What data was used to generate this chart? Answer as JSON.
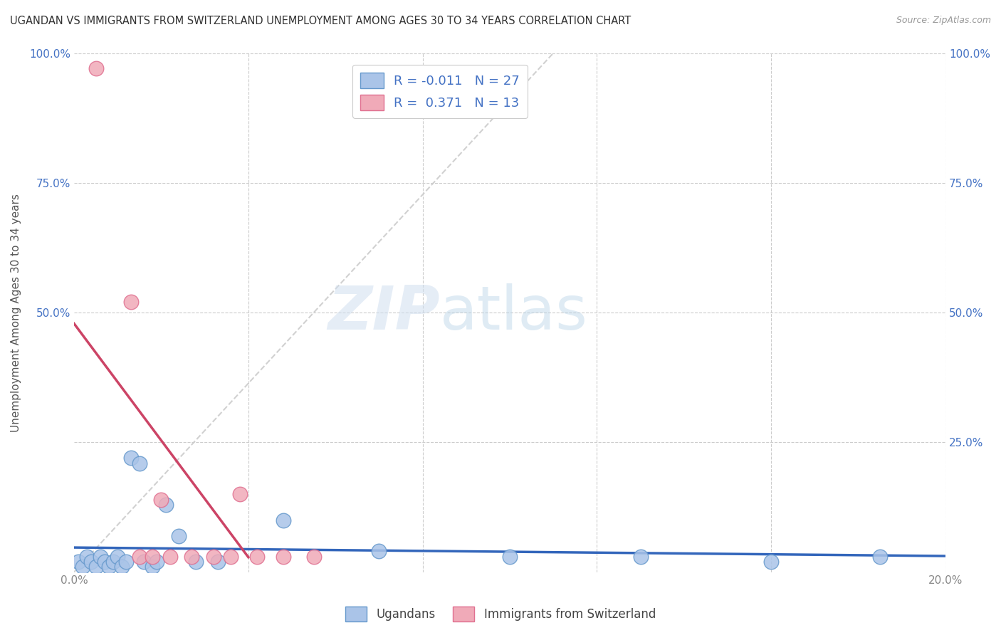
{
  "title": "UGANDAN VS IMMIGRANTS FROM SWITZERLAND UNEMPLOYMENT AMONG AGES 30 TO 34 YEARS CORRELATION CHART",
  "source": "Source: ZipAtlas.com",
  "xlabel": "",
  "ylabel": "Unemployment Among Ages 30 to 34 years",
  "xlim": [
    0.0,
    0.2
  ],
  "ylim": [
    0.0,
    1.0
  ],
  "xticks": [
    0.0,
    0.04,
    0.08,
    0.12,
    0.16,
    0.2
  ],
  "yticks": [
    0.0,
    0.25,
    0.5,
    0.75,
    1.0
  ],
  "xticklabels": [
    "0.0%",
    "",
    "",
    "",
    "",
    "20.0%"
  ],
  "yticklabels_left": [
    "",
    "",
    "50.0%",
    "75.0%",
    "100.0%"
  ],
  "yticklabels_right": [
    "",
    "25.0%",
    "50.0%",
    "75.0%",
    "100.0%"
  ],
  "ugandans_x": [
    0.001,
    0.002,
    0.003,
    0.004,
    0.005,
    0.006,
    0.007,
    0.008,
    0.009,
    0.01,
    0.011,
    0.012,
    0.013,
    0.015,
    0.016,
    0.018,
    0.019,
    0.021,
    0.024,
    0.028,
    0.033,
    0.048,
    0.07,
    0.1,
    0.13,
    0.16,
    0.185
  ],
  "ugandans_y": [
    0.02,
    0.01,
    0.03,
    0.02,
    0.01,
    0.03,
    0.02,
    0.01,
    0.02,
    0.03,
    0.01,
    0.02,
    0.22,
    0.21,
    0.02,
    0.01,
    0.02,
    0.13,
    0.07,
    0.02,
    0.02,
    0.1,
    0.04,
    0.03,
    0.03,
    0.02,
    0.03
  ],
  "swiss_x": [
    0.005,
    0.013,
    0.015,
    0.018,
    0.02,
    0.022,
    0.027,
    0.032,
    0.036,
    0.038,
    0.042,
    0.048,
    0.055
  ],
  "swiss_y": [
    0.97,
    0.52,
    0.03,
    0.03,
    0.14,
    0.03,
    0.03,
    0.03,
    0.03,
    0.15,
    0.03,
    0.03,
    0.03
  ],
  "ugandans_color": "#aac4e8",
  "swiss_color": "#f0aab8",
  "ugandans_edge": "#6699cc",
  "swiss_edge": "#e07090",
  "blue_line_color": "#3366bb",
  "pink_line_color": "#cc4466",
  "gray_line_color": "#cccccc",
  "R_ugandans": "-0.011",
  "N_ugandans": "27",
  "R_swiss": "0.371",
  "N_swiss": "13",
  "legend_ugandans": "Ugandans",
  "legend_swiss": "Immigrants from Switzerland",
  "watermark_zip": "ZIP",
  "watermark_atlas": "atlas",
  "background_color": "#ffffff",
  "grid_color": "#cccccc",
  "title_color": "#333333",
  "source_color": "#999999",
  "ylabel_color": "#555555",
  "tick_color_blue": "#4472c4",
  "tick_color_gray": "#888888"
}
